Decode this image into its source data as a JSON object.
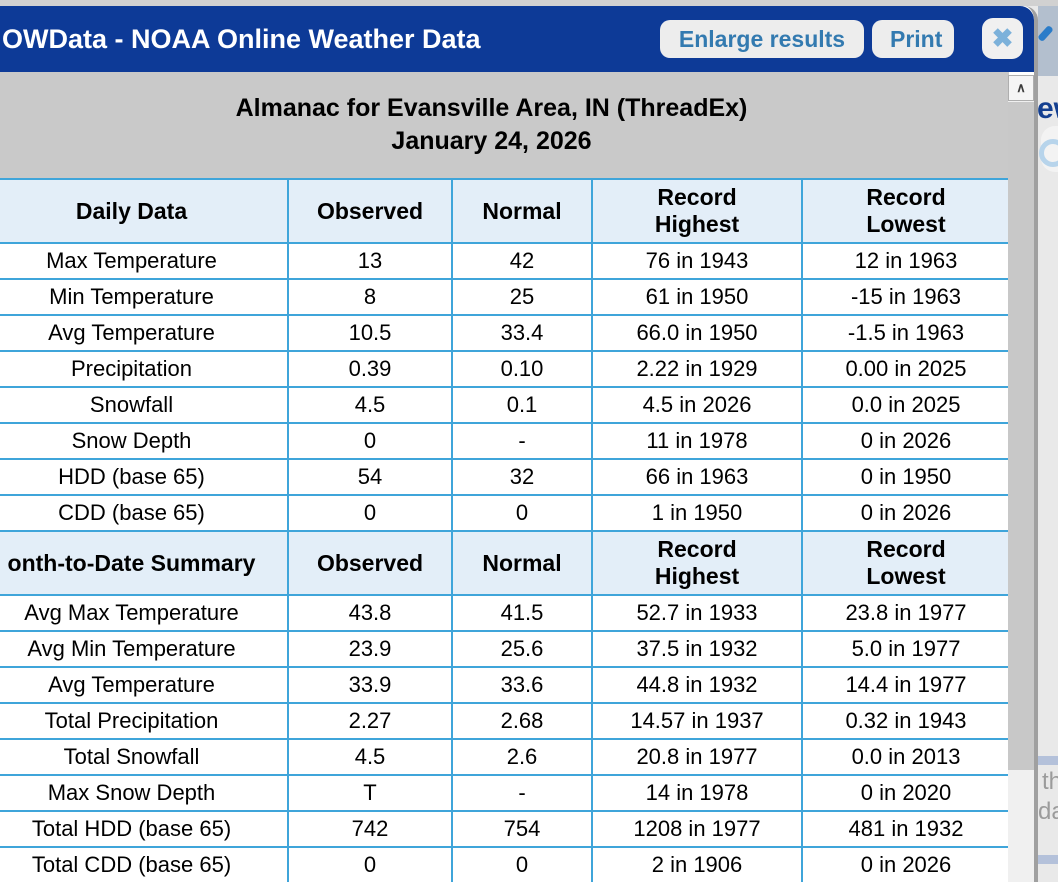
{
  "window": {
    "title": "OWData - NOAA Online Weather Data",
    "enlarge_button": "Enlarge results",
    "print_button": "Print"
  },
  "icons": {
    "close": "✖",
    "scroll_up": "∧"
  },
  "almanac": {
    "title_line1": "Almanac for Evansville Area, IN (ThreadEx)",
    "title_line2": "January 24, 2026"
  },
  "daily": {
    "header": [
      "Daily Data",
      "Observed",
      "Normal",
      "Record\nHighest",
      "Record\nLowest"
    ],
    "rows": [
      [
        "Max Temperature",
        "13",
        "42",
        "76 in 1943",
        "12 in 1963"
      ],
      [
        "Min Temperature",
        "8",
        "25",
        "61 in 1950",
        "-15 in 1963"
      ],
      [
        "Avg Temperature",
        "10.5",
        "33.4",
        "66.0 in 1950",
        "-1.5 in 1963"
      ],
      [
        "Precipitation",
        "0.39",
        "0.10",
        "2.22 in 1929",
        "0.00 in 2025"
      ],
      [
        "Snowfall",
        "4.5",
        "0.1",
        "4.5 in 2026",
        "0.0 in 2025"
      ],
      [
        "Snow Depth",
        "0",
        "-",
        "11 in 1978",
        "0 in 2026"
      ],
      [
        "HDD (base 65)",
        "54",
        "32",
        "66 in 1963",
        "0 in 1950"
      ],
      [
        "CDD (base 65)",
        "0",
        "0",
        "1 in 1950",
        "0 in 2026"
      ]
    ]
  },
  "monthly": {
    "header": [
      "onth-to-Date Summary",
      "Observed",
      "Normal",
      "Record\nHighest",
      "Record\nLowest"
    ],
    "rows": [
      [
        "Avg Max Temperature",
        "43.8",
        "41.5",
        "52.7 in 1933",
        "23.8 in 1977"
      ],
      [
        "Avg Min Temperature",
        "23.9",
        "25.6",
        "37.5 in 1932",
        "5.0 in 1977"
      ],
      [
        "Avg Temperature",
        "33.9",
        "33.6",
        "44.8 in 1932",
        "14.4 in 1977"
      ],
      [
        "Total Precipitation",
        "2.27",
        "2.68",
        "14.57 in 1937",
        "0.32 in 1943"
      ],
      [
        "Total Snowfall",
        "4.5",
        "2.6",
        "20.8 in 1977",
        "0.0 in 2013"
      ],
      [
        "Max Snow Depth",
        "T",
        "-",
        "14 in 1978",
        "0 in 2020"
      ],
      [
        "Total HDD (base 65)",
        "742",
        "754",
        "1208 in 1977",
        "481 in 1932"
      ],
      [
        "Total CDD (base 65)",
        "0",
        "0",
        "2 in 1906",
        "0 in 2026"
      ]
    ]
  },
  "background_fragments": {
    "word_top": "ew",
    "frag1": "th",
    "frag2": "da"
  },
  "colors": {
    "header_navy": "#0d3a97",
    "button_text_blue": "#337ab0",
    "close_icon_blue": "#7cb1da",
    "table_border_blue": "#3fa5da",
    "table_header_bg": "#e3eef8",
    "title_bar_gray": "#c9c9c9",
    "scrollbar_thumb": "#c8c8c8"
  }
}
